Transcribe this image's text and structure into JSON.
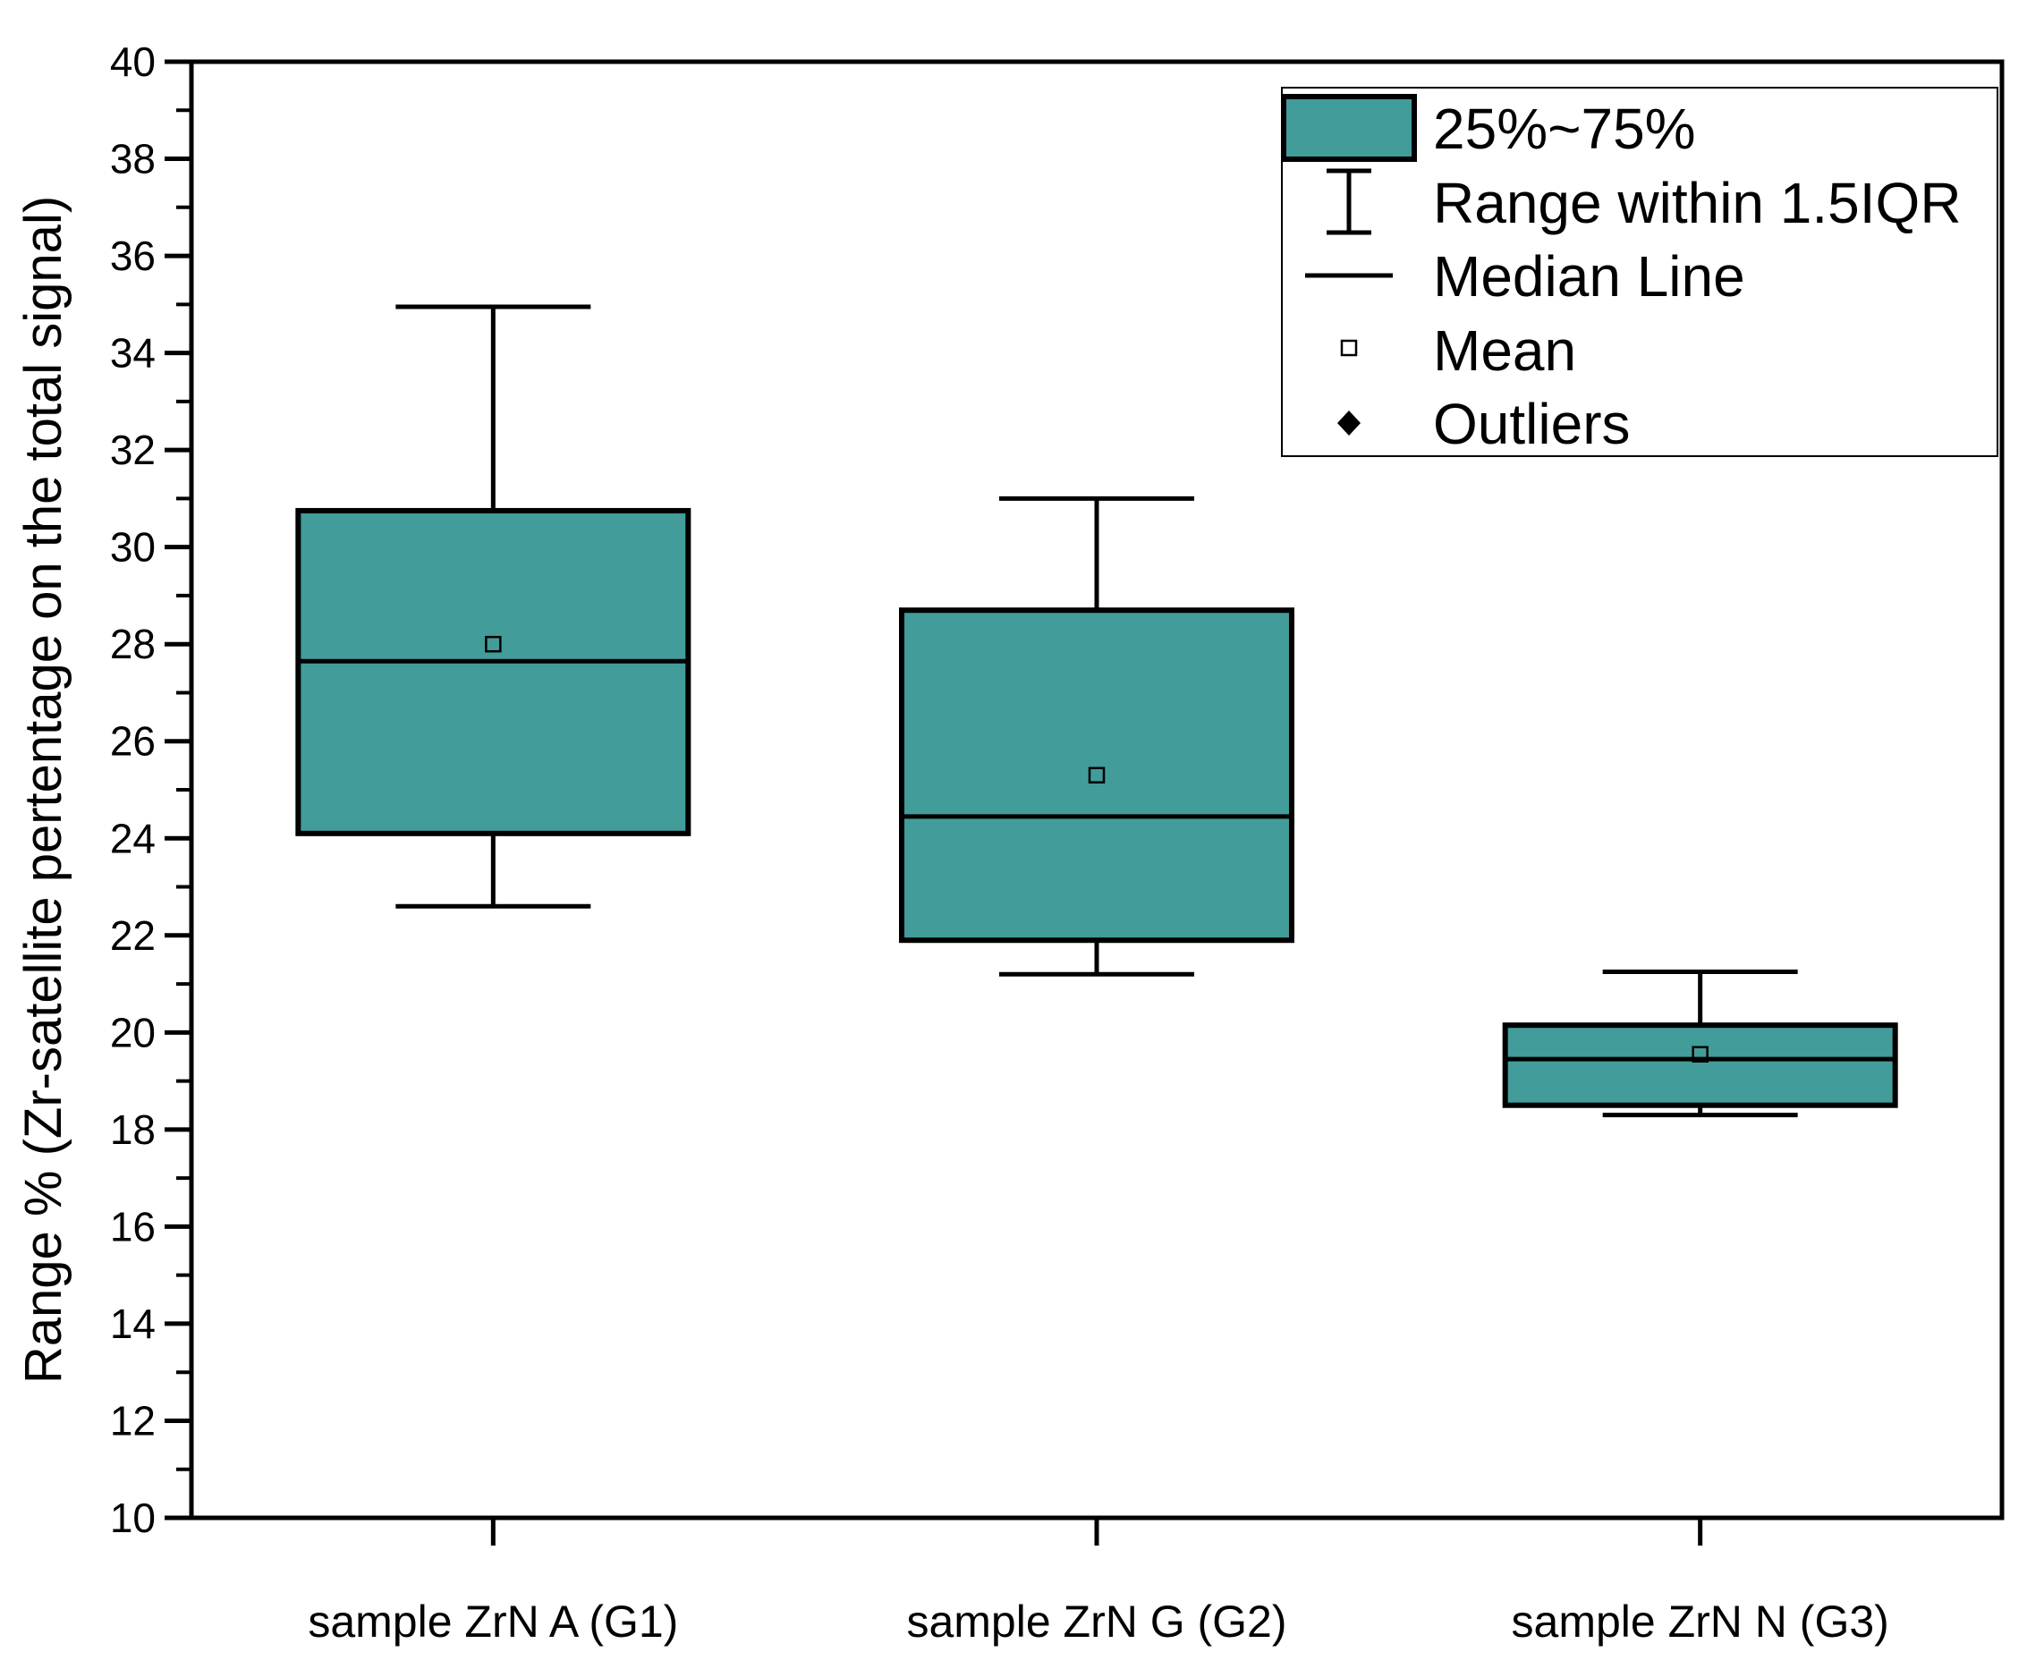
{
  "chart_data": {
    "type": "box",
    "title": "",
    "xlabel": "",
    "ylabel": "Range % (Zr-satellite pertentage on the total signal)",
    "ylim": [
      10,
      40
    ],
    "yticks": [
      10,
      12,
      14,
      16,
      18,
      20,
      22,
      24,
      26,
      28,
      30,
      32,
      34,
      36,
      38,
      40
    ],
    "grid": false,
    "legend_position": "top-right",
    "box_color": "#429C9A",
    "edge_color": "#000000",
    "categories": [
      "sample ZrN A (G1)",
      "sample ZrN G (G2)",
      "sample ZrN N (G3)"
    ],
    "boxes": [
      {
        "name": "sample ZrN A (G1)",
        "whisker_low": 22.6,
        "q1": 24.1,
        "median": 27.65,
        "q3": 30.75,
        "whisker_high": 34.95,
        "mean": 28.0,
        "outliers": []
      },
      {
        "name": "sample ZrN G (G2)",
        "whisker_low": 21.2,
        "q1": 21.9,
        "median": 24.45,
        "q3": 28.7,
        "whisker_high": 31.0,
        "mean": 25.3,
        "outliers": []
      },
      {
        "name": "sample ZrN N (G3)",
        "whisker_low": 18.3,
        "q1": 18.5,
        "median": 19.45,
        "q3": 20.15,
        "whisker_high": 21.25,
        "mean": 19.55,
        "outliers": []
      }
    ],
    "legend": [
      {
        "key": "box",
        "label": "25%~75%"
      },
      {
        "key": "range",
        "label": "Range within 1.5IQR"
      },
      {
        "key": "median",
        "label": "Median Line"
      },
      {
        "key": "mean",
        "label": "Mean"
      },
      {
        "key": "outliers",
        "label": "Outliers"
      }
    ]
  }
}
